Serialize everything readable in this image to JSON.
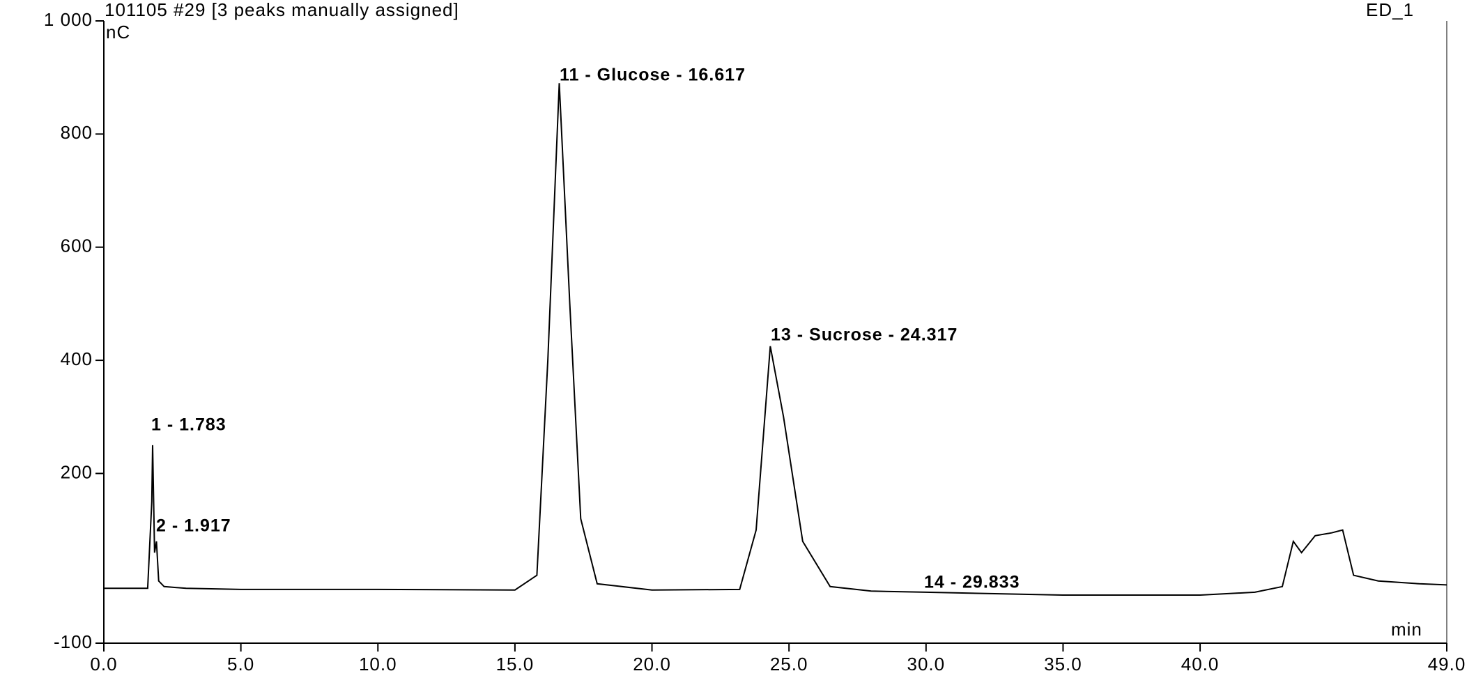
{
  "chart_data": {
    "type": "line",
    "title": "101105 #29 [3 peaks manually assigned]",
    "channel": "ED_1",
    "y_unit": "nC",
    "x_unit": "min",
    "color": "#000000",
    "x": [
      0,
      1.6,
      1.75,
      1.78,
      1.85,
      1.92,
      2.0,
      2.2,
      3,
      5,
      10,
      15,
      15.8,
      16.2,
      16.617,
      17.0,
      17.4,
      18,
      20,
      23.2,
      23.8,
      24.317,
      24.8,
      25.5,
      26.5,
      28,
      30,
      35,
      40,
      42,
      43.0,
      43.4,
      43.7,
      44.2,
      44.8,
      45.2,
      45.6,
      46.5,
      48,
      49
    ],
    "values": [
      -3,
      -3,
      150,
      250,
      60,
      80,
      10,
      0,
      -3,
      -5,
      -5,
      -6,
      20,
      400,
      890,
      500,
      120,
      5,
      -6,
      -5,
      100,
      425,
      300,
      80,
      0,
      -8,
      -10,
      -15,
      -15,
      -10,
      0,
      80,
      60,
      90,
      95,
      100,
      20,
      10,
      5,
      3
    ],
    "annotations": [
      "1 - 1.783",
      "2 - 1.917",
      "11 - Glucose - 16.617",
      "13 - Sucrose - 24.317",
      "14 - 29.833"
    ],
    "xlim": [
      0,
      49
    ],
    "ylim": [
      -100,
      1000
    ],
    "xticks": [
      {
        "value": 0,
        "label": "0.0"
      },
      {
        "value": 5,
        "label": "5.0"
      },
      {
        "value": 10,
        "label": "10.0"
      },
      {
        "value": 15,
        "label": "15.0"
      },
      {
        "value": 20,
        "label": "20.0"
      },
      {
        "value": 25,
        "label": "25.0"
      },
      {
        "value": 30,
        "label": "30.0"
      },
      {
        "value": 35,
        "label": "35.0"
      },
      {
        "value": 40,
        "label": "40.0"
      },
      {
        "value": 49,
        "label": "49.0"
      }
    ],
    "yticks": [
      -100,
      200,
      400,
      600,
      800,
      {
        "value": 1000,
        "label": "1 000"
      }
    ]
  }
}
